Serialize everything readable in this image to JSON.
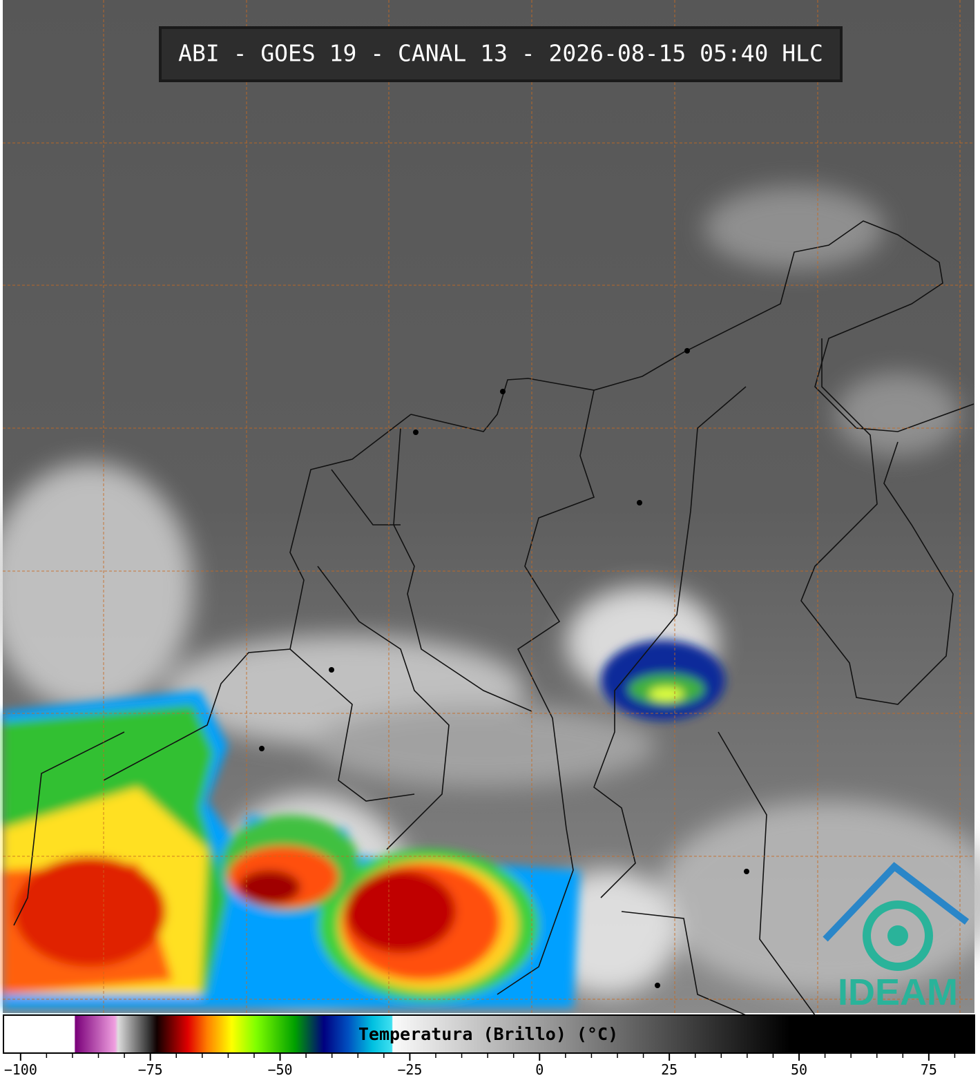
{
  "chart_data": {
    "type": "colorbar",
    "title": "ABI - GOES 19 - CANAL 13 - 2026-08-15 05:40 HLC",
    "label": "Temperatura (Brillo) (°C)",
    "xlim": [
      -103.3,
      83.8
    ],
    "xticks": [
      {
        "value": -100,
        "label": "−100"
      },
      {
        "value": -75,
        "label": "−75"
      },
      {
        "value": -50,
        "label": "−50"
      },
      {
        "value": -25,
        "label": "−25"
      },
      0,
      25,
      50,
      75
    ],
    "xminor_ticks": [
      -95,
      -90,
      -85,
      -80,
      -70,
      -65,
      -60,
      -55,
      -45,
      -40,
      -35,
      -30,
      -20,
      -15,
      -10,
      -5,
      5,
      10,
      15,
      20,
      30,
      35,
      40,
      45,
      55,
      60,
      65,
      70,
      80
    ]
  },
  "logo": "IDEAM"
}
